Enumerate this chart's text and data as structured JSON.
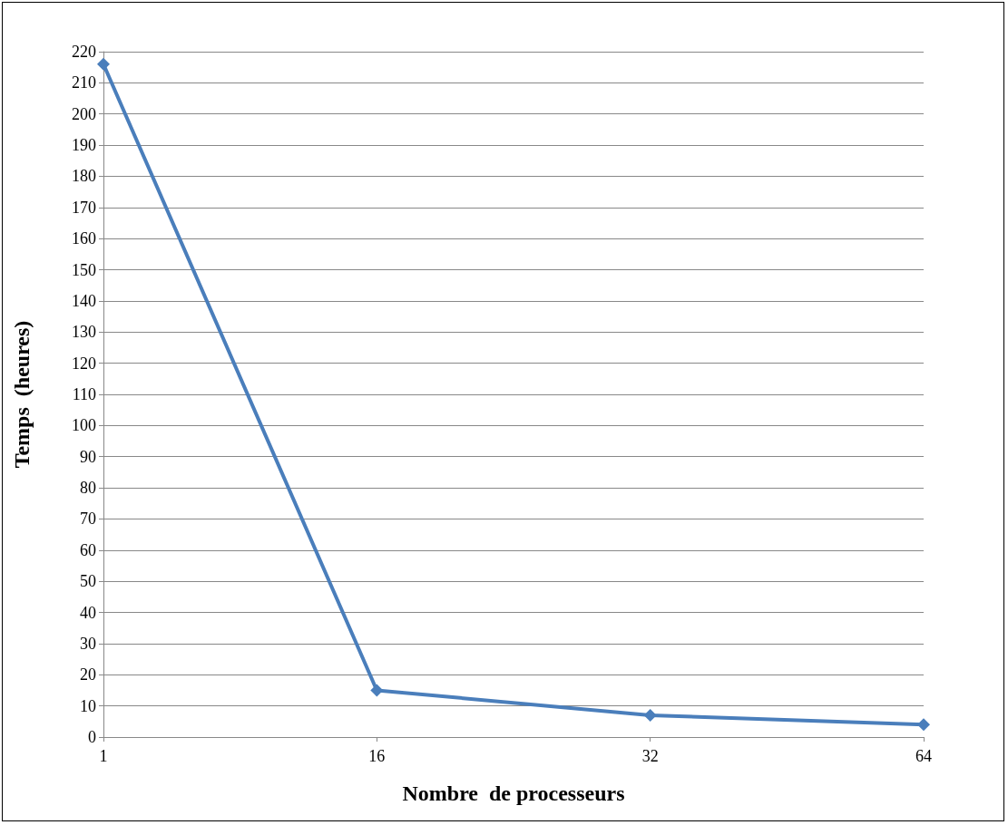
{
  "chart_data": {
    "type": "line",
    "xlabel": "Nombre  de processeurs",
    "ylabel": "Temps  (heures)",
    "categories": [
      "1",
      "16",
      "32",
      "64"
    ],
    "series": [
      {
        "color": "#4a7ebb",
        "values": [
          216,
          15,
          7,
          4
        ]
      }
    ],
    "ylim": [
      0,
      220
    ],
    "yticks": [
      0,
      10,
      20,
      30,
      40,
      50,
      60,
      70,
      80,
      90,
      100,
      110,
      120,
      130,
      140,
      150,
      160,
      170,
      180,
      190,
      200,
      210,
      220
    ],
    "grid": "y",
    "marker": "diamond",
    "line_style": "solid"
  }
}
